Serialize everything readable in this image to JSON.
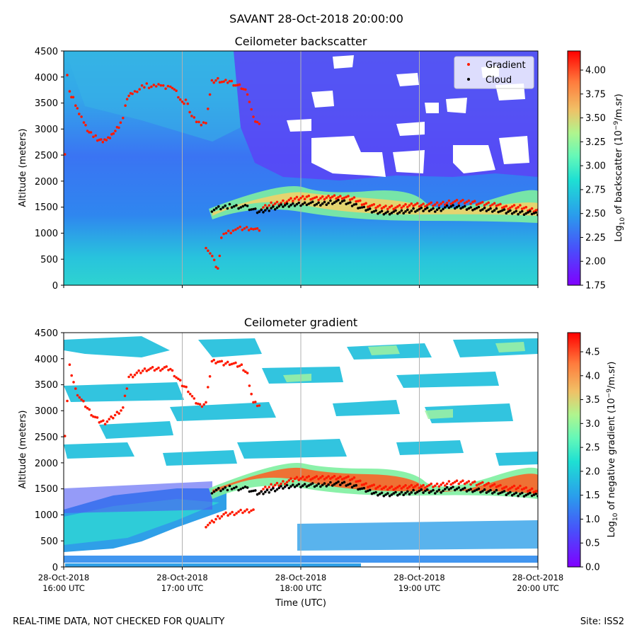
{
  "figure": {
    "title": "SAVANT 28-Oct-2018 20:00:00",
    "footer_left": "REAL-TIME DATA, NOT CHECKED FOR QUALITY",
    "footer_right": "Site: ISS2",
    "xlabel": "Time (UTC)"
  },
  "colors": {
    "gradient_markers": "#ff1a00",
    "cloud_markers": "#000000",
    "grid": "#b0b0b0",
    "colormap": "rainbow"
  },
  "chart_data": [
    {
      "type": "heatmap",
      "id": "backscatter",
      "title": "Ceilometer backscatter",
      "ylabel": "Altitude (meters)",
      "xlim": [
        0,
        4
      ],
      "ylim": [
        0,
        4500
      ],
      "yticks": [
        0,
        500,
        1000,
        1500,
        2000,
        2500,
        3000,
        3500,
        4000,
        4500
      ],
      "grid": "vertical at each hour",
      "legend": {
        "placement": "top-right",
        "entries": [
          {
            "label": "Gradient",
            "color": "#ff1a00"
          },
          {
            "label": "Cloud",
            "color": "#000000"
          }
        ]
      },
      "colorbar": {
        "label": "Log10 of backscatter (10^-9/m.sr)",
        "label_pre": "Log",
        "label_sub": "10",
        "label_mid": " of backscatter (10",
        "label_sup": "−9",
        "label_post": "/m.sr)",
        "range": [
          1.75,
          4.2
        ],
        "ticks": [
          "1.75",
          "2.00",
          "2.25",
          "2.50",
          "2.75",
          "3.00",
          "3.25",
          "3.50",
          "3.75",
          "4.00"
        ]
      },
      "series": [
        {
          "name": "Gradient",
          "segments": [
            [
              [
                0.01,
                2550
              ],
              [
                0.03,
                4000
              ],
              [
                0.05,
                3700
              ],
              [
                0.08,
                3600
              ],
              [
                0.1,
                3450
              ],
              [
                0.13,
                3300
              ],
              [
                0.17,
                3150
              ],
              [
                0.2,
                3000
              ],
              [
                0.23,
                2900
              ],
              [
                0.27,
                2850
              ],
              [
                0.3,
                2780
              ],
              [
                0.33,
                2750
              ],
              [
                0.36,
                2800
              ],
              [
                0.39,
                2850
              ],
              [
                0.42,
                2950
              ],
              [
                0.45,
                3000
              ],
              [
                0.48,
                3100
              ],
              [
                0.5,
                3200
              ],
              [
                0.52,
                3450
              ],
              [
                0.55,
                3650
              ],
              [
                0.58,
                3700
              ],
              [
                0.62,
                3750
              ],
              [
                0.66,
                3800
              ],
              [
                0.7,
                3850
              ],
              [
                0.74,
                3800
              ],
              [
                0.78,
                3820
              ],
              [
                0.82,
                3850
              ],
              [
                0.86,
                3800
              ],
              [
                0.9,
                3850
              ],
              [
                0.95,
                3700
              ],
              [
                1.0,
                3500
              ],
              [
                1.03,
                3550
              ],
              [
                1.08,
                3250
              ],
              [
                1.12,
                3150
              ],
              [
                1.16,
                3100
              ],
              [
                1.2,
                3150
              ],
              [
                1.25,
                3900
              ],
              [
                1.3,
                3950
              ],
              [
                1.35,
                3900
              ],
              [
                1.4,
                3920
              ],
              [
                1.45,
                3850
              ],
              [
                1.5,
                3800
              ],
              [
                1.55,
                3700
              ],
              [
                1.6,
                3200
              ],
              [
                1.65,
                3100
              ]
            ],
            [
              [
                1.2,
                750
              ],
              [
                1.27,
                450
              ],
              [
                1.3,
                300
              ],
              [
                1.33,
                900
              ],
              [
                1.37,
                1000
              ],
              [
                1.45,
                1080
              ],
              [
                1.6,
                1100
              ],
              [
                1.65,
                1050
              ]
            ],
            [
              [
                1.65,
                1450
              ],
              [
                1.75,
                1550
              ],
              [
                1.85,
                1600
              ],
              [
                1.95,
                1650
              ],
              [
                2.05,
                1700
              ],
              [
                2.15,
                1650
              ],
              [
                2.25,
                1700
              ],
              [
                2.35,
                1700
              ],
              [
                2.45,
                1650
              ],
              [
                2.55,
                1550
              ],
              [
                2.65,
                1500
              ],
              [
                2.75,
                1500
              ],
              [
                2.85,
                1500
              ],
              [
                2.95,
                1550
              ],
              [
                3.05,
                1550
              ],
              [
                3.15,
                1550
              ],
              [
                3.25,
                1600
              ],
              [
                3.35,
                1600
              ],
              [
                3.45,
                1600
              ],
              [
                3.55,
                1550
              ],
              [
                3.65,
                1550
              ],
              [
                3.75,
                1500
              ],
              [
                3.85,
                1500
              ],
              [
                3.95,
                1450
              ],
              [
                4.0,
                1450
              ]
            ]
          ]
        },
        {
          "name": "Cloud",
          "segments": [
            [
              [
                1.25,
                1450
              ],
              [
                1.4,
                1520
              ],
              [
                1.55,
                1500
              ],
              [
                1.65,
                1400
              ],
              [
                1.75,
                1480
              ],
              [
                1.85,
                1520
              ],
              [
                1.95,
                1550
              ],
              [
                2.05,
                1580
              ],
              [
                2.15,
                1550
              ],
              [
                2.25,
                1600
              ],
              [
                2.35,
                1600
              ],
              [
                2.45,
                1550
              ],
              [
                2.55,
                1450
              ],
              [
                2.65,
                1400
              ],
              [
                2.75,
                1400
              ],
              [
                2.85,
                1400
              ],
              [
                2.95,
                1450
              ],
              [
                3.05,
                1450
              ],
              [
                3.15,
                1450
              ],
              [
                3.25,
                1500
              ],
              [
                3.35,
                1500
              ],
              [
                3.45,
                1480
              ],
              [
                3.55,
                1450
              ],
              [
                3.65,
                1450
              ],
              [
                3.75,
                1400
              ],
              [
                3.85,
                1400
              ],
              [
                3.95,
                1380
              ],
              [
                4.0,
                1350
              ]
            ]
          ]
        }
      ]
    },
    {
      "type": "heatmap",
      "id": "gradient",
      "title": "Ceilometer gradient",
      "ylabel": "Altitude (meters)",
      "xlim": [
        0,
        4
      ],
      "ylim": [
        0,
        4500
      ],
      "yticks": [
        0,
        500,
        1000,
        1500,
        2000,
        2500,
        3000,
        3500,
        4000,
        4500
      ],
      "xticks": [
        "28-Oct-2018\n16:00 UTC",
        "28-Oct-2018\n17:00 UTC",
        "28-Oct-2018\n18:00 UTC",
        "28-Oct-2018\n19:00 UTC",
        "28-Oct-2018\n20:00 UTC"
      ],
      "grid": "vertical at each hour",
      "colorbar": {
        "label": "Log10 of negative gradient (10^-9/m.sr)",
        "label_pre": "Log",
        "label_sub": "10",
        "label_mid": " of negative gradient (10",
        "label_sup": "−9",
        "label_post": "/m.sr)",
        "range": [
          0.0,
          4.9
        ],
        "ticks": [
          "0.0",
          "0.5",
          "1.0",
          "1.5",
          "2.0",
          "2.5",
          "3.0",
          "3.5",
          "4.0",
          "4.5"
        ]
      },
      "series": [
        {
          "name": "Gradient",
          "segments": [
            [
              [
                0.01,
                2550
              ],
              [
                0.05,
                3850
              ],
              [
                0.1,
                3400
              ],
              [
                0.15,
                3200
              ],
              [
                0.2,
                3050
              ],
              [
                0.25,
                2900
              ],
              [
                0.3,
                2800
              ],
              [
                0.35,
                2780
              ],
              [
                0.4,
                2850
              ],
              [
                0.45,
                2950
              ],
              [
                0.5,
                3050
              ],
              [
                0.55,
                3650
              ],
              [
                0.6,
                3700
              ],
              [
                0.65,
                3750
              ],
              [
                0.7,
                3800
              ],
              [
                0.75,
                3800
              ],
              [
                0.8,
                3800
              ],
              [
                0.85,
                3820
              ],
              [
                0.9,
                3800
              ],
              [
                0.95,
                3650
              ],
              [
                1.0,
                3500
              ],
              [
                1.05,
                3400
              ],
              [
                1.1,
                3200
              ],
              [
                1.15,
                3100
              ],
              [
                1.2,
                3150
              ],
              [
                1.25,
                3950
              ],
              [
                1.3,
                3950
              ],
              [
                1.35,
                3900
              ],
              [
                1.4,
                3920
              ],
              [
                1.5,
                3850
              ],
              [
                1.55,
                3700
              ],
              [
                1.6,
                3150
              ],
              [
                1.65,
                3100
              ]
            ],
            [
              [
                1.2,
                800
              ],
              [
                1.25,
                850
              ],
              [
                1.3,
                950
              ],
              [
                1.35,
                1000
              ],
              [
                1.6,
                1100
              ]
            ],
            [
              [
                1.65,
                1450
              ],
              [
                1.75,
                1550
              ],
              [
                1.85,
                1620
              ],
              [
                1.95,
                1680
              ],
              [
                2.05,
                1720
              ],
              [
                2.15,
                1700
              ],
              [
                2.25,
                1720
              ],
              [
                2.35,
                1720
              ],
              [
                2.45,
                1680
              ],
              [
                2.55,
                1580
              ],
              [
                2.65,
                1520
              ],
              [
                2.75,
                1520
              ],
              [
                2.85,
                1520
              ],
              [
                2.95,
                1550
              ],
              [
                3.05,
                1560
              ],
              [
                3.15,
                1560
              ],
              [
                3.25,
                1620
              ],
              [
                3.35,
                1620
              ],
              [
                3.45,
                1620
              ],
              [
                3.55,
                1580
              ],
              [
                3.65,
                1560
              ],
              [
                3.75,
                1520
              ],
              [
                3.85,
                1520
              ],
              [
                3.95,
                1480
              ],
              [
                4.0,
                1460
              ]
            ]
          ]
        },
        {
          "name": "Cloud",
          "segments": [
            [
              [
                1.25,
                1450
              ],
              [
                1.4,
                1520
              ],
              [
                1.55,
                1500
              ],
              [
                1.65,
                1400
              ],
              [
                1.75,
                1480
              ],
              [
                1.85,
                1520
              ],
              [
                1.95,
                1560
              ],
              [
                2.05,
                1580
              ],
              [
                2.15,
                1560
              ],
              [
                2.25,
                1600
              ],
              [
                2.35,
                1600
              ],
              [
                2.45,
                1560
              ],
              [
                2.55,
                1460
              ],
              [
                2.65,
                1400
              ],
              [
                2.75,
                1400
              ],
              [
                2.85,
                1400
              ],
              [
                2.95,
                1450
              ],
              [
                3.05,
                1450
              ],
              [
                3.15,
                1450
              ],
              [
                3.25,
                1500
              ],
              [
                3.35,
                1500
              ],
              [
                3.45,
                1480
              ],
              [
                3.55,
                1450
              ],
              [
                3.65,
                1450
              ],
              [
                3.75,
                1400
              ],
              [
                3.85,
                1400
              ],
              [
                3.95,
                1380
              ],
              [
                4.0,
                1360
              ]
            ]
          ]
        }
      ]
    }
  ]
}
